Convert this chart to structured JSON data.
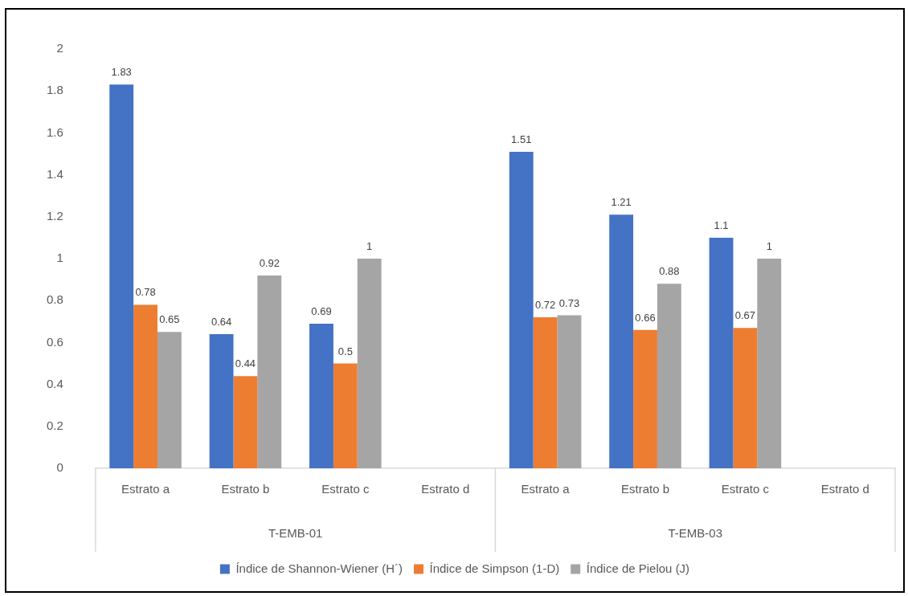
{
  "chart_data": {
    "type": "bar",
    "categories": [
      "Estrato a",
      "Estrato b",
      "Estrato c",
      "Estrato d",
      "Estrato a",
      "Estrato b",
      "Estrato c",
      "Estrato d"
    ],
    "series": [
      {
        "name": "Índice de Shannon-Wiener (H´)",
        "color": "#4472c4",
        "values": [
          1.83,
          0.64,
          0.69,
          null,
          1.51,
          1.21,
          1.1,
          null
        ]
      },
      {
        "name": "Índice de Simpson (1-D)",
        "color": "#ed7d31",
        "values": [
          0.78,
          0.44,
          0.5,
          null,
          0.72,
          0.66,
          0.67,
          null
        ]
      },
      {
        "name": "Índice de Pielou (J)",
        "color": "#a5a5a5",
        "values": [
          0.65,
          0.92,
          1,
          null,
          0.73,
          0.88,
          1,
          null
        ]
      }
    ],
    "annotations": [
      "T-EMB-01",
      "T-EMB-03"
    ],
    "ylim": [
      0,
      2
    ],
    "yticks": [
      0,
      0.2,
      0.4,
      0.6,
      0.8,
      1,
      1.2,
      1.4,
      1.6,
      1.8,
      2
    ],
    "grid": false,
    "legend": "bottom",
    "data_labels": true
  }
}
